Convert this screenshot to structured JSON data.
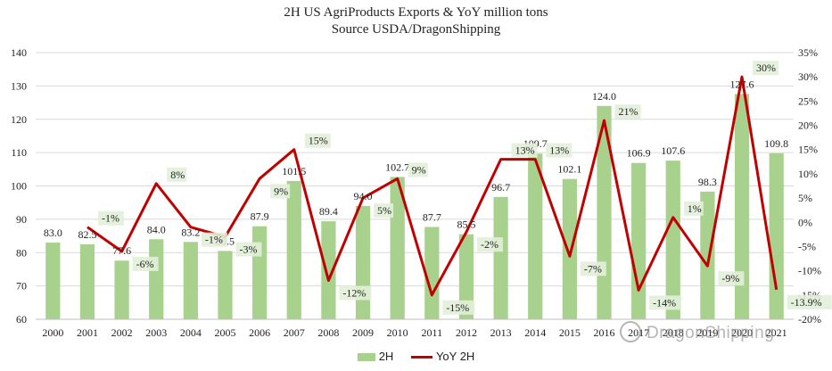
{
  "chart_data": {
    "type": "bar+line",
    "title": "2H US AgriProducts Exports & YoY million tons",
    "subtitle": "Source USDA/DragonShipping",
    "categories": [
      "2000",
      "2001",
      "2002",
      "2003",
      "2004",
      "2005",
      "2006",
      "2007",
      "2008",
      "2009",
      "2010",
      "2011",
      "2012",
      "2013",
      "2014",
      "2015",
      "2016",
      "2017",
      "2018",
      "2019",
      "2020",
      "2021"
    ],
    "series": [
      {
        "name": "2H",
        "type": "bar",
        "axis": "left",
        "color": "#a9d18e",
        "values": [
          83.0,
          82.5,
          77.6,
          84.0,
          83.2,
          80.5,
          87.9,
          101.5,
          89.4,
          94.0,
          102.7,
          87.7,
          85.5,
          96.7,
          109.7,
          102.1,
          124.0,
          106.9,
          107.6,
          98.3,
          127.6,
          109.8
        ],
        "labels": [
          "83.0",
          "82.5",
          "77.6",
          "84.0",
          "83.2",
          "80.5",
          "87.9",
          "101.5",
          "89.4",
          "94.0",
          "102.7",
          "87.7",
          "85.5",
          "96.7",
          "109.7",
          "102.1",
          "124.0",
          "106.9",
          "107.6",
          "98.3",
          "127.6",
          "109.8"
        ]
      },
      {
        "name": "YoY 2H",
        "type": "line",
        "axis": "right",
        "color": "#c00000",
        "values": [
          null,
          -1,
          -6,
          8,
          -1,
          -3,
          9,
          15,
          -12,
          5,
          9,
          -15,
          -2,
          13,
          13,
          -7,
          21,
          -14,
          1,
          -9,
          30,
          -13.9
        ],
        "labels": [
          "",
          "-1%",
          "-6%",
          "8%",
          "-1%",
          "-3%",
          "9%",
          "15%",
          "-12%",
          "5%",
          "9%",
          "-15%",
          "-2%",
          "13%",
          "13%",
          "-7%",
          "21%",
          "-14%",
          "1%",
          "-9%",
          "30%",
          "-13.9%"
        ]
      }
    ],
    "y_left": {
      "min": 60,
      "max": 140,
      "step": 10,
      "ticks": [
        "60",
        "70",
        "80",
        "90",
        "100",
        "110",
        "120",
        "130",
        "140"
      ]
    },
    "y_right": {
      "min": -20,
      "max": 35,
      "step": 5,
      "ticks": [
        "-20%",
        "-15%",
        "-10%",
        "-5%",
        "0%",
        "5%",
        "10%",
        "15%",
        "20%",
        "25%",
        "30%",
        "35%"
      ]
    },
    "grid": true,
    "legend": "bottom-center"
  },
  "watermark": "DragonShipping"
}
